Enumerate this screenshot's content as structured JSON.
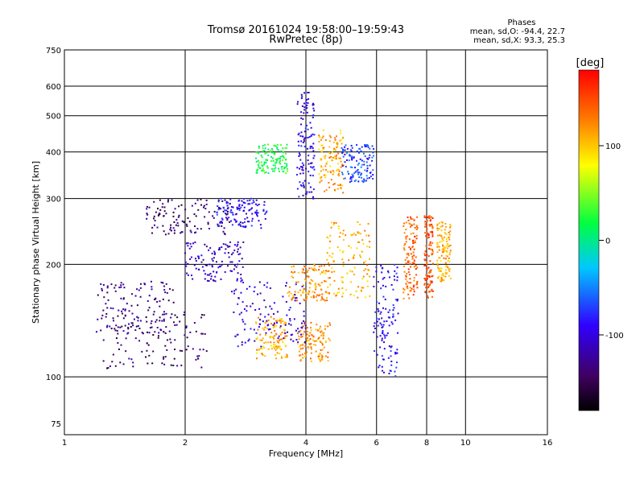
{
  "header": {
    "title_line1": "Tromsø 20161024 19:58:00–19:59:43",
    "title_line2": "RwPretec (8p)",
    "stats_heading": "Phases",
    "stats_o": "mean, sd,O: -94.4, 22.7",
    "stats_x": "mean, sd,X:  93.3, 25.3"
  },
  "colorbar": {
    "unit": "[deg]",
    "ticks": [
      "100",
      "0",
      "-100"
    ],
    "tick_values": [
      100,
      0,
      -100
    ],
    "range": [
      -180,
      180
    ]
  },
  "chart_data": {
    "type": "scatter",
    "title": "Tromsø 20161024 19:58:00–19:59:43",
    "subtitle": "RwPretec (8p)",
    "xlabel": "Frequency [MHz]",
    "ylabel": "Stationary phase Virtual Height [km]",
    "xscale": "log",
    "yscale": "log",
    "xlim": [
      1,
      16
    ],
    "ylim": [
      70,
      750
    ],
    "xticks": [
      1,
      2,
      4,
      6,
      8,
      10,
      16
    ],
    "xtick_labels": [
      "1",
      "2",
      "4",
      "6",
      "8",
      "10",
      "16"
    ],
    "xgrid": [
      2,
      4,
      6,
      8,
      10
    ],
    "yticks": [
      75,
      100,
      200,
      300,
      400,
      500,
      600,
      750
    ],
    "ytick_labels": [
      "75",
      "100",
      "200",
      "300",
      "400",
      "500",
      "600",
      "750"
    ],
    "ygrid": [
      100,
      200,
      300,
      400,
      500,
      600
    ],
    "color_by": "phase (deg)",
    "clusters": [
      {
        "f": [
          1.25,
          2.3
        ],
        "h": [
          105,
          150
        ],
        "phase": -140
      },
      {
        "f": [
          1.6,
          2.6
        ],
        "h": [
          240,
          300
        ],
        "phase": -140
      },
      {
        "f": [
          2.0,
          2.8
        ],
        "h": [
          180,
          230
        ],
        "phase": -110
      },
      {
        "f": [
          1.2,
          1.9
        ],
        "h": [
          130,
          180
        ],
        "phase": -130
      },
      {
        "f": [
          2.4,
          3.2
        ],
        "h": [
          250,
          300
        ],
        "phase": -90
      },
      {
        "f": [
          3.0,
          3.6
        ],
        "h": [
          350,
          420
        ],
        "phase": 20
      },
      {
        "f": [
          3.8,
          4.2
        ],
        "h": [
          300,
          580
        ],
        "phase": -95
      },
      {
        "f": [
          4.3,
          5.0
        ],
        "h": [
          310,
          460
        ],
        "phase": 110
      },
      {
        "f": [
          4.9,
          5.9
        ],
        "h": [
          330,
          420
        ],
        "phase": -70
      },
      {
        "f": [
          3.0,
          3.6
        ],
        "h": [
          112,
          145
        ],
        "phase": 110
      },
      {
        "f": [
          3.8,
          4.6
        ],
        "h": [
          110,
          140
        ],
        "phase": 120
      },
      {
        "f": [
          3.6,
          4.6
        ],
        "h": [
          160,
          200
        ],
        "phase": 120
      },
      {
        "f": [
          4.5,
          5.8
        ],
        "h": [
          160,
          260
        ],
        "phase": 110
      },
      {
        "f": [
          5.9,
          6.8
        ],
        "h": [
          100,
          200
        ],
        "phase": -90
      },
      {
        "f": [
          7.0,
          7.6
        ],
        "h": [
          160,
          270
        ],
        "phase": 140
      },
      {
        "f": [
          7.9,
          8.3
        ],
        "h": [
          160,
          270
        ],
        "phase": 150
      },
      {
        "f": [
          8.5,
          9.2
        ],
        "h": [
          180,
          260
        ],
        "phase": 110
      },
      {
        "f": [
          2.6,
          4.0
        ],
        "h": [
          120,
          180
        ],
        "phase": -100
      }
    ]
  }
}
